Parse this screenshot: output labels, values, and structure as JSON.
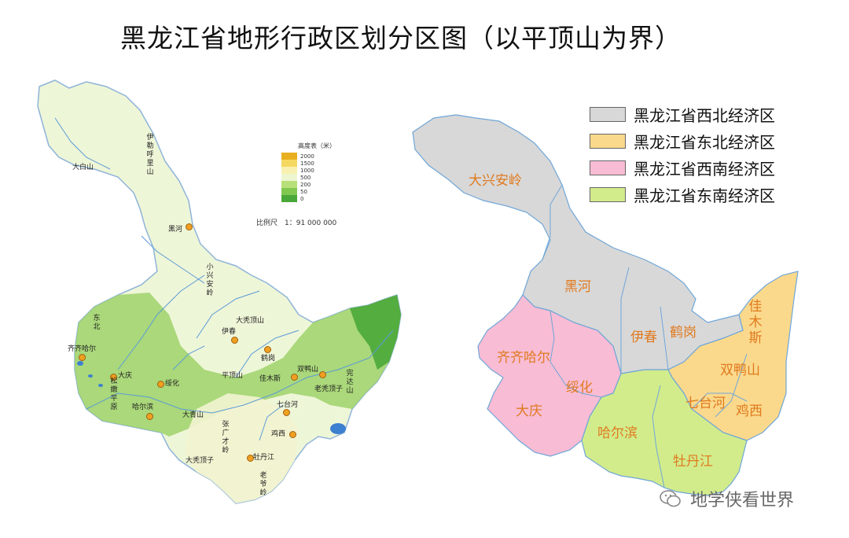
{
  "title": "黑龙江省地形行政区划分区图（以平顶山为界）",
  "colors": {
    "northwest": "#d8d8d8",
    "northeast": "#fbd98c",
    "southwest": "#f8bcd4",
    "southeast": "#d2ec8c",
    "region_label": "#e07a1f",
    "region_border": "#6fa6d8"
  },
  "legend": [
    {
      "label": "黑龙江省西北经济区",
      "color": "#d8d8d8"
    },
    {
      "label": "黑龙江省东北经济区",
      "color": "#fbd98c"
    },
    {
      "label": "黑龙江省西南经济区",
      "color": "#f8bcd4"
    },
    {
      "label": "黑龙江省东南经济区",
      "color": "#d2ec8c"
    }
  ],
  "elevation_legend": {
    "title": "高度表（米）",
    "items": [
      {
        "value": "2000",
        "color": "#e8b020"
      },
      {
        "value": "1500",
        "color": "#f5d860"
      },
      {
        "value": "1000",
        "color": "#f8f0b0"
      },
      {
        "value": "500",
        "color": "#eef6d0"
      },
      {
        "value": "200",
        "color": "#b8e07a"
      },
      {
        "value": "50",
        "color": "#80c850"
      },
      {
        "value": "0",
        "color": "#4aa838"
      }
    ]
  },
  "scale_text": "比例尺　1：91 000 000",
  "region_labels": {
    "daxinganling": "大兴安岭",
    "heihe": "黑河",
    "yichun": "伊春",
    "hegang": "鹤岗",
    "qiqihaer": "齐齐哈尔",
    "suihua": "绥化",
    "daqing": "大庆",
    "haerbin": "哈尔滨",
    "mudanjiang": "牡丹江",
    "qitaihe": "七台河",
    "jixi": "鸡西",
    "shuangyashan": "双鸭山",
    "jiamusi": "佳木斯"
  },
  "terrain_labels": {
    "heihe": "黑河",
    "qiqihaer": "齐齐哈尔",
    "daqing": "大庆",
    "suihua": "绥化",
    "haerbin": "哈尔滨",
    "yichun": "伊春",
    "hegang": "鹤岗",
    "jiamusi": "佳木斯",
    "shuangyashan": "双鸭山",
    "qitaihe": "七台河",
    "jixi": "鸡西",
    "mudanjiang": "牡丹江",
    "pingding": "平顶山",
    "dabaishan": "大白山",
    "xiaoxinganling": "小兴安岭",
    "yilehuli": "伊勒呼里山",
    "songnen": "松嫩平原",
    "dongbei": "东北",
    "laoyeling": "老爷岭",
    "zhangguangcai": "张广才岭",
    "wanda": "完达山",
    "datudingzi": "大秃顶子",
    "laotudingzi": "老秃顶子",
    "daqingshan": "大青山",
    "daxiufeng": "大秃顶山"
  },
  "watermark": "地学侠看世界"
}
